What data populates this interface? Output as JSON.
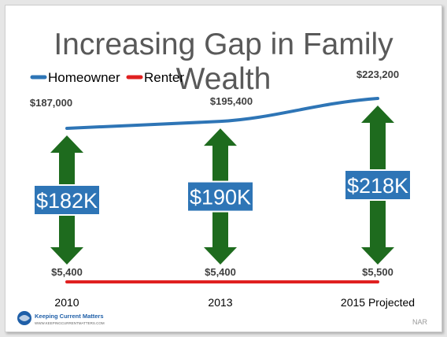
{
  "title": "Increasing Gap in Family Wealth",
  "source": "NAR",
  "logo": {
    "name": "Keeping Current Matters",
    "url": "WWW.KEEPINGCURRENTMATTERS.COM"
  },
  "colors": {
    "homeowner": "#2e75b6",
    "renter": "#e02020",
    "arrow": "#1e6b1e",
    "gap_label_bg": "#2e75b6"
  },
  "chart_data": {
    "type": "line",
    "title": "Increasing Gap in Family Wealth",
    "categories": [
      "2010",
      "2013",
      "2015 Projected"
    ],
    "series": [
      {
        "name": "Homeowner",
        "values": [
          187000,
          195400,
          223200
        ],
        "labels": [
          "$187,000",
          "$195,400",
          "$223,200"
        ],
        "color": "#2e75b6"
      },
      {
        "name": "Renter",
        "values": [
          5400,
          5400,
          5500
        ],
        "labels": [
          "$5,400",
          "$5,400",
          "$5,500"
        ],
        "color": "#e02020"
      }
    ],
    "gap_labels": [
      "$182K",
      "$190K",
      "$218K"
    ],
    "legend_position": "top-left",
    "grid": false
  }
}
